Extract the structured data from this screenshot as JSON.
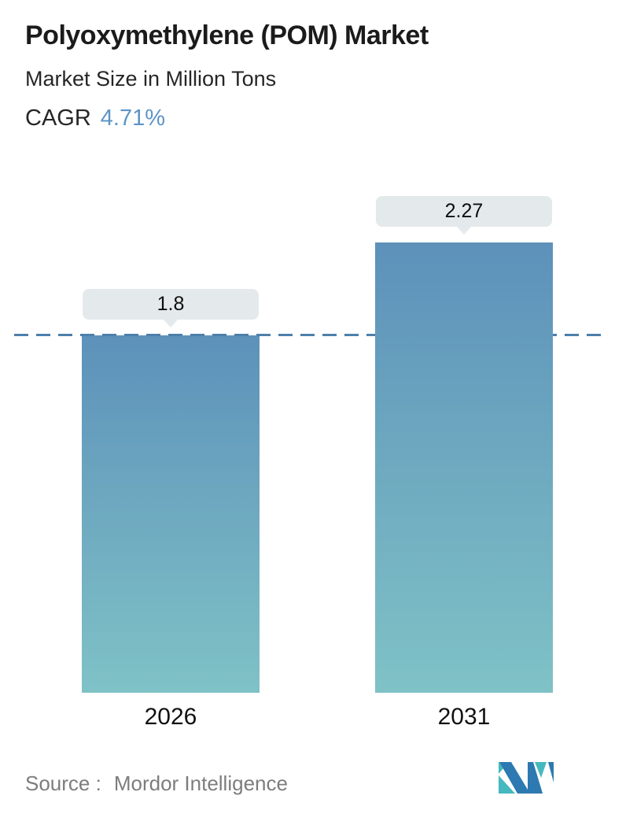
{
  "header": {
    "title": "Polyoxymethylene (POM) Market",
    "subtitle": "Market Size in Million Tons",
    "cagr_label": "CAGR",
    "cagr_value": "4.71%"
  },
  "chart_data": {
    "type": "bar",
    "categories": [
      "2026",
      "2031"
    ],
    "values": [
      1.8,
      2.27
    ],
    "value_labels": [
      "1.8",
      "2.27"
    ],
    "title": "Polyoxymethylene (POM) Market",
    "ylabel": "Market Size in Million Tons",
    "ylim": [
      0,
      2.27
    ],
    "grid": false,
    "legend": "none",
    "reference_line": {
      "value": 1.8,
      "style": "dashed"
    },
    "bar_gradient_top": "#5d91ba",
    "bar_gradient_bottom": "#7fc2c6",
    "dashed_line_color": "#4d7fab",
    "label_bg": "#e4eaec"
  },
  "footer": {
    "source_label": "Source :",
    "source_value": "Mordor Intelligence",
    "logo": "mordor-intelligence-logo"
  },
  "colors": {
    "accent_blue": "#5e94c6",
    "text_dark": "#1b1b1b",
    "text_gray": "#7d7d7d",
    "logo_teal": "#46b8bf",
    "logo_blue": "#2d79b1"
  }
}
